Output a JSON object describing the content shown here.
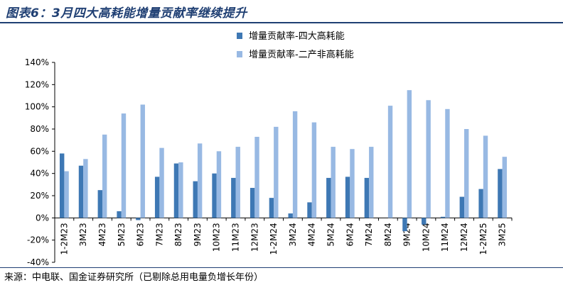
{
  "header": {
    "title": "图表6：3月四大高耗能增量贡献率继续提升"
  },
  "footer": {
    "source": "来源：中电联、国金证券研究所（已剔除总用电量负增长年份）"
  },
  "colors": {
    "series_dark": "#3e78b4",
    "series_light": "#98b9e3",
    "title": "#1f3f73"
  },
  "chart_data": {
    "type": "bar",
    "title": "",
    "xlabel": "",
    "ylabel": "",
    "ylim": [
      -40,
      140
    ],
    "yticks": [
      -40,
      -20,
      0,
      20,
      40,
      60,
      80,
      100,
      120,
      140
    ],
    "ytick_labels": [
      "-40%",
      "-20%",
      "0%",
      "20%",
      "40%",
      "60%",
      "80%",
      "100%",
      "120%",
      "140%"
    ],
    "grid": false,
    "legend_position": "top-right",
    "categories": [
      "1-2M23",
      "3M23",
      "4M23",
      "5M23",
      "6M23",
      "7M23",
      "8M23",
      "9M23",
      "10M23",
      "11M23",
      "12M23",
      "1-2M24",
      "3M24",
      "4M24",
      "5M24",
      "6M24",
      "7M24",
      "8M24",
      "9M24",
      "10M24",
      "11M24",
      "12M24",
      "1-2M25",
      "3M25"
    ],
    "series": [
      {
        "name": "增量贡献率-四大高耗能",
        "values": [
          58,
          47,
          25,
          6,
          -2,
          37,
          49,
          33,
          40,
          36,
          27,
          18,
          4,
          14,
          36,
          37,
          36,
          0,
          -12,
          -6,
          1,
          19,
          26,
          44
        ]
      },
      {
        "name": "增量贡献率-二产非高耗能",
        "values": [
          42,
          53,
          75,
          94,
          102,
          63,
          50,
          67,
          60,
          64,
          73,
          82,
          96,
          86,
          64,
          62,
          64,
          101,
          115,
          106,
          98,
          80,
          74,
          55
        ]
      }
    ]
  }
}
